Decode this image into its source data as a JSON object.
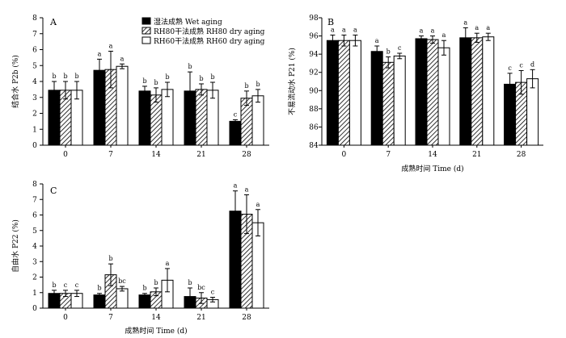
{
  "legend": [
    {
      "label": "湿法成熟 Wet aging",
      "fill": "solid"
    },
    {
      "label": "RH80干法成熟  RH80 dry aging",
      "fill": "hatch"
    },
    {
      "label": "RH60干法成熟  RH60 dry aging",
      "fill": "white"
    }
  ],
  "colors": {
    "solid": "#000000",
    "hatch": "#000000",
    "white": "#ffffff"
  },
  "chart_data": [
    {
      "panel": "A",
      "type": "bar",
      "ylabel": "结合水 P2b (%)",
      "xlabel": "",
      "ylim": [
        0,
        8
      ],
      "yticks": [
        "0",
        "1",
        "2",
        "3",
        "4",
        "5",
        "6",
        "7",
        "8"
      ],
      "categories": [
        "0",
        "7",
        "14",
        "21",
        "28"
      ],
      "series": [
        {
          "name": "湿法成熟 Wet aging",
          "values": [
            3.45,
            4.7,
            3.4,
            3.4,
            1.5
          ],
          "errors": [
            0.55,
            0.7,
            0.3,
            1.2,
            0.1
          ],
          "letters": [
            "b",
            "a",
            "b",
            "b",
            "c"
          ]
        },
        {
          "name": "RH80干法成熟  RH80 dry aging",
          "values": [
            3.45,
            4.75,
            3.15,
            3.5,
            2.95
          ],
          "errors": [
            0.55,
            1.15,
            0.45,
            0.35,
            0.45
          ],
          "letters": [
            "b",
            "a",
            "b",
            "b",
            "b"
          ]
        },
        {
          "name": "RH60干法成熟  RH60 dry aging",
          "values": [
            3.45,
            4.95,
            3.5,
            3.45,
            3.1
          ],
          "errors": [
            0.55,
            0.15,
            0.45,
            0.5,
            0.4
          ],
          "letters": [
            "b",
            "a",
            "b",
            "b",
            "b"
          ]
        }
      ]
    },
    {
      "panel": "B",
      "type": "bar",
      "ylabel": "不易流动水 P21 (%)",
      "xlabel": "成熟时间 Time (d)",
      "ylim": [
        84,
        98
      ],
      "yticks": [
        "84",
        "86",
        "88",
        "90",
        "92",
        "94",
        "96",
        "98"
      ],
      "categories": [
        "0",
        "7",
        "14",
        "21",
        "28"
      ],
      "series": [
        {
          "name": "湿法成熟 Wet aging",
          "values": [
            95.5,
            94.3,
            95.7,
            95.8,
            90.7
          ],
          "errors": [
            0.6,
            0.6,
            0.3,
            1.1,
            1.2
          ],
          "letters": [
            "a",
            "a",
            "a",
            "a",
            "c"
          ]
        },
        {
          "name": "RH80干法成熟  RH80 dry aging",
          "values": [
            95.5,
            93.1,
            95.6,
            95.8,
            90.9
          ],
          "errors": [
            0.6,
            0.6,
            0.4,
            0.5,
            1.3
          ],
          "letters": [
            "a",
            "b",
            "a",
            "a",
            "c"
          ]
        },
        {
          "name": "RH60干法成熟  RH60 dry aging",
          "values": [
            95.5,
            93.8,
            94.7,
            95.9,
            91.3
          ],
          "errors": [
            0.6,
            0.3,
            0.8,
            0.4,
            1.0
          ],
          "letters": [
            "a",
            "c",
            "a",
            "a",
            "d"
          ]
        }
      ]
    },
    {
      "panel": "C",
      "type": "bar",
      "ylabel": "自由水 P22 (%)",
      "xlabel": "成熟时间 Time (d)",
      "ylim": [
        0,
        8
      ],
      "yticks": [
        "0",
        "1",
        "2",
        "3",
        "4",
        "5",
        "6",
        "7",
        "8"
      ],
      "categories": [
        "0",
        "7",
        "14",
        "21",
        "28"
      ],
      "series": [
        {
          "name": "湿法成熟 Wet aging",
          "values": [
            0.95,
            0.85,
            0.85,
            0.75,
            6.25
          ],
          "errors": [
            0.2,
            0.1,
            0.1,
            0.55,
            1.3
          ],
          "letters": [
            "b",
            "b",
            "b",
            "b",
            "a"
          ]
        },
        {
          "name": "RH80干法成熟  RH80 dry aging",
          "values": [
            0.95,
            2.15,
            1.05,
            0.65,
            6.05
          ],
          "errors": [
            0.2,
            0.7,
            0.25,
            0.35,
            1.25
          ],
          "letters": [
            "c",
            "b",
            "b",
            "bc",
            "a"
          ]
        },
        {
          "name": "RH60干法成熟  RH60 dry aging",
          "values": [
            0.95,
            1.25,
            1.8,
            0.55,
            5.5
          ],
          "errors": [
            0.2,
            0.15,
            0.75,
            0.15,
            0.85
          ],
          "letters": [
            "c",
            "bc",
            "a",
            "c",
            "a"
          ]
        }
      ]
    }
  ]
}
